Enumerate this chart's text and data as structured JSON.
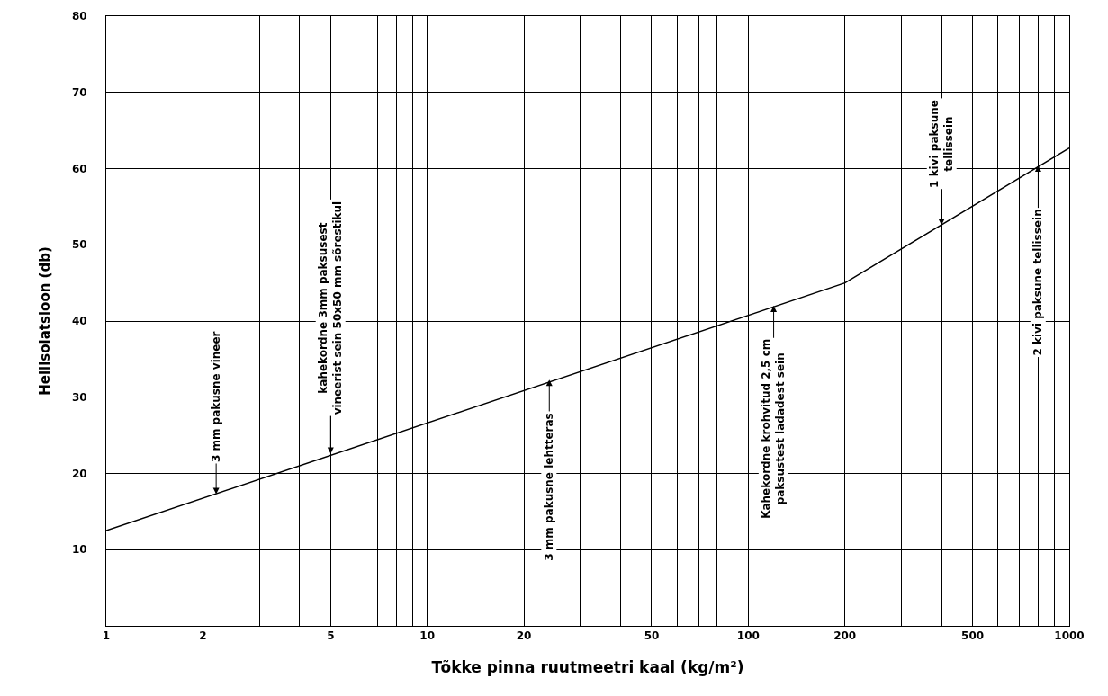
{
  "chart_data": {
    "type": "line",
    "xlabel": "Tõkke pinna ruutmeetri kaal (kg/m²)",
    "ylabel": "Heliisolatsioon (db)",
    "x": [
      1,
      200,
      1000
    ],
    "series": [
      {
        "color": "#000000",
        "values": [
          12.5,
          45,
          62.7
        ]
      }
    ],
    "log": "x",
    "xlim": [
      1,
      1000
    ],
    "xticks": [
      1,
      2,
      5,
      10,
      20,
      50,
      100,
      200,
      500,
      1000
    ],
    "ylim": [
      0,
      80
    ],
    "yticks": [
      10,
      20,
      30,
      40,
      50,
      60,
      70,
      80
    ],
    "grid": true,
    "marker": "none",
    "line_style": "solid",
    "annotations": [
      {
        "text": "3 mm pakusne vineer",
        "x": 2.2,
        "y": 17.3
      },
      {
        "text": "kahekordne 3mm paksusest\nvineerist sein 50x50 mm sõrestikul",
        "x": 5,
        "y": 22.6
      },
      {
        "text": "3 mm pakusne lehtteras",
        "x": 24,
        "y": 32.3
      },
      {
        "text": "Kahekordne krohvitud 2,5 cm\npaksustest ladadest sein",
        "x": 120,
        "y": 42
      },
      {
        "text": "1 kivi paksune\ntellissein",
        "x": 400,
        "y": 52.6
      },
      {
        "text": "2 kivi paksune tellissein",
        "x": 800,
        "y": 60.4
      }
    ]
  }
}
